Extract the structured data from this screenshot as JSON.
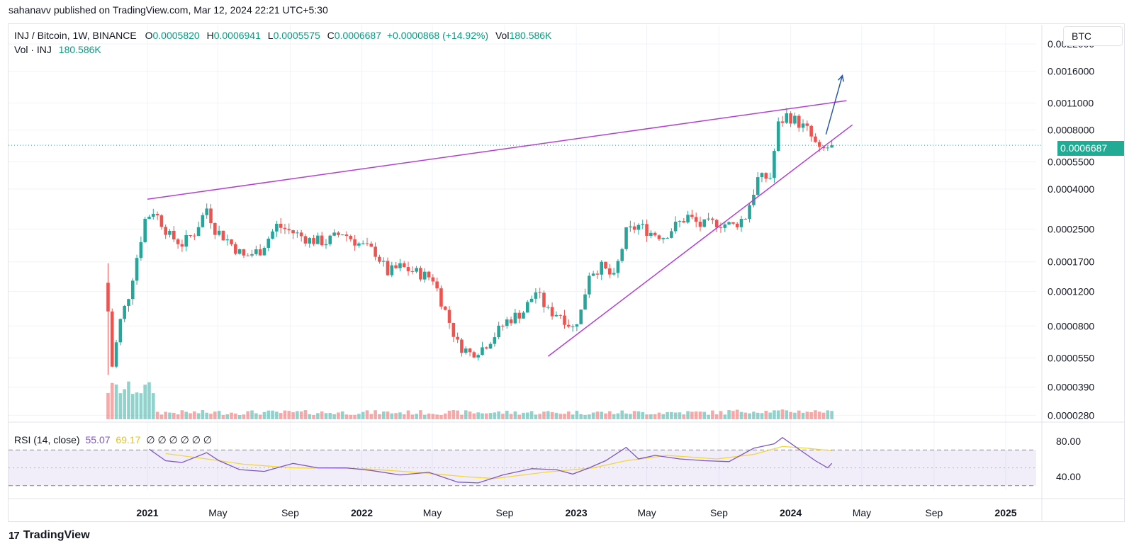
{
  "header": {
    "published": "sahanavv published on TradingView.com, Mar 12, 2024 22:21 UTC+5:30"
  },
  "legend": {
    "symbol": "INJ / Bitcoin, 1W, BINANCE",
    "o_label": "O",
    "o_value": "0.0005820",
    "h_label": "H",
    "h_value": "0.0006941",
    "l_label": "L",
    "l_value": "0.0005575",
    "c_label": "C",
    "c_value": "0.0006687",
    "change": "+0.0000868 (+14.92%)",
    "vol_label": "Vol",
    "vol_value": "180.586K",
    "vol_row_label": "Vol · INJ",
    "vol_row_value": "180.586K"
  },
  "rsi_legend": {
    "label": "RSI (14, close)",
    "rsi": "55.07",
    "ma": "69.17",
    "na": "∅ ∅ ∅ ∅ ∅ ∅"
  },
  "scale_button": "BTC",
  "last_price": "0.0006687",
  "footer": {
    "logo": "17",
    "brand": "TradingView"
  },
  "colors": {
    "up": "#26a69a",
    "down": "#ef5350",
    "trend": "#b53fd6",
    "arrow": "#2a5aa8",
    "rsi": "#7e57c2",
    "rsi_ma": "#f2d63c",
    "last": "#22ab94"
  },
  "chart_data": {
    "type": "candlestick",
    "title": "INJ / Bitcoin, 1W, BINANCE",
    "yscale": "log",
    "ylim": [
      2.5e-05,
      0.0026
    ],
    "y_ticks": [
      "0.0022000",
      "0.0016000",
      "0.0011000",
      "0.0008000",
      "0.0005500",
      "0.0004000",
      "0.0002500",
      "0.0001700",
      "0.0001200",
      "0.0000800",
      "0.0000550",
      "0.0000390",
      "0.0000280"
    ],
    "x_ticks": [
      "2021",
      "May",
      "Sep",
      "2022",
      "May",
      "Sep",
      "2023",
      "May",
      "Sep",
      "2024",
      "May",
      "Sep",
      "2025"
    ],
    "x_tick_dates": [
      "2021-01-01",
      "2021-05-01",
      "2021-09-01",
      "2022-01-01",
      "2022-05-01",
      "2022-09-01",
      "2023-01-01",
      "2023-05-01",
      "2023-09-01",
      "2024-01-01",
      "2024-05-01",
      "2024-09-01",
      "2025-01-01"
    ],
    "close_path": [
      [
        "2020-10-26",
        9.5e-05
      ],
      [
        "2020-11-02",
        5e-05
      ],
      [
        "2020-11-16",
        8.5e-05
      ],
      [
        "2020-11-30",
        0.000115
      ],
      [
        "2020-12-14",
        0.00018
      ],
      [
        "2020-12-28",
        0.00028
      ],
      [
        "2021-01-11",
        0.00031
      ],
      [
        "2021-01-25",
        0.00027
      ],
      [
        "2021-02-08",
        0.00023
      ],
      [
        "2021-03-01",
        0.00021
      ],
      [
        "2021-03-22",
        0.00024
      ],
      [
        "2021-04-12",
        0.00032
      ],
      [
        "2021-04-26",
        0.00025
      ],
      [
        "2021-05-17",
        0.00022
      ],
      [
        "2021-06-14",
        0.00018
      ],
      [
        "2021-07-12",
        0.000195
      ],
      [
        "2021-08-09",
        0.00026
      ],
      [
        "2021-09-06",
        0.00024
      ],
      [
        "2021-10-04",
        0.00022
      ],
      [
        "2021-11-01",
        0.000215
      ],
      [
        "2021-11-29",
        0.00024
      ],
      [
        "2021-12-27",
        0.00021
      ],
      [
        "2022-01-24",
        0.00019
      ],
      [
        "2022-02-14",
        0.00015
      ],
      [
        "2022-03-07",
        0.00016
      ],
      [
        "2022-04-04",
        0.00015
      ],
      [
        "2022-05-02",
        0.00014
      ],
      [
        "2022-05-23",
        9.5e-05
      ],
      [
        "2022-06-13",
        6.5e-05
      ],
      [
        "2022-07-04",
        5.8e-05
      ],
      [
        "2022-07-25",
        6.2e-05
      ],
      [
        "2022-08-15",
        7.2e-05
      ],
      [
        "2022-09-05",
        8.5e-05
      ],
      [
        "2022-10-03",
        9.5e-05
      ],
      [
        "2022-10-24",
        0.00012
      ],
      [
        "2022-11-14",
        9.5e-05
      ],
      [
        "2022-12-05",
        9.2e-05
      ],
      [
        "2022-12-26",
        7.8e-05
      ],
      [
        "2023-01-09",
        9.5e-05
      ],
      [
        "2023-01-23",
        0.00015
      ],
      [
        "2023-02-13",
        0.00016
      ],
      [
        "2023-03-06",
        0.00014
      ],
      [
        "2023-03-27",
        0.00024
      ],
      [
        "2023-04-17",
        0.00026
      ],
      [
        "2023-05-08",
        0.00024
      ],
      [
        "2023-05-29",
        0.00023
      ],
      [
        "2023-06-19",
        0.00026
      ],
      [
        "2023-07-10",
        0.00029
      ],
      [
        "2023-07-31",
        0.00026
      ],
      [
        "2023-08-28",
        0.00027
      ],
      [
        "2023-09-25",
        0.00026
      ],
      [
        "2023-10-16",
        0.00029
      ],
      [
        "2023-11-06",
        0.00045
      ],
      [
        "2023-11-27",
        0.00046
      ],
      [
        "2023-12-11",
        0.00085
      ],
      [
        "2023-12-25",
        0.00095
      ],
      [
        "2024-01-08",
        0.0009
      ],
      [
        "2024-01-29",
        0.0008
      ],
      [
        "2024-02-19",
        0.00062
      ],
      [
        "2024-03-11",
        0.0006687
      ]
    ],
    "trendlines": [
      {
        "name": "resistance",
        "points": [
          [
            "2021-01-01",
            0.000355
          ],
          [
            "2024-04-05",
            0.00113
          ]
        ]
      },
      {
        "name": "support",
        "points": [
          [
            "2022-11-14",
            5.6e-05
          ],
          [
            "2024-04-15",
            0.00085
          ]
        ]
      }
    ],
    "projection_arrow": {
      "points": [
        [
          "2024-03-01",
          0.00076
        ],
        [
          "2024-03-29",
          0.00152
        ]
      ]
    },
    "last_price": 0.0006687,
    "volume": {
      "last": "180.586K"
    },
    "rsi": {
      "ylim": [
        25,
        95
      ],
      "y_ticks": [
        "80.00",
        "40.00"
      ],
      "bands": [
        70,
        50,
        30
      ],
      "last_rsi": 55.07,
      "last_ma": 69.17,
      "rsi_series": [
        [
          "2021-01-04",
          71
        ],
        [
          "2021-02-01",
          58
        ],
        [
          "2021-03-01",
          56
        ],
        [
          "2021-04-12",
          67
        ],
        [
          "2021-05-03",
          58
        ],
        [
          "2021-06-07",
          48
        ],
        [
          "2021-07-19",
          46
        ],
        [
          "2021-09-06",
          55
        ],
        [
          "2021-10-18",
          50
        ],
        [
          "2021-12-06",
          50
        ],
        [
          "2022-01-17",
          47
        ],
        [
          "2022-03-07",
          42
        ],
        [
          "2022-04-25",
          45
        ],
        [
          "2022-06-13",
          34
        ],
        [
          "2022-07-18",
          33
        ],
        [
          "2022-08-29",
          42
        ],
        [
          "2022-10-17",
          49
        ],
        [
          "2022-11-28",
          48
        ],
        [
          "2022-12-26",
          43
        ],
        [
          "2023-01-23",
          50
        ],
        [
          "2023-02-20",
          58
        ],
        [
          "2023-03-27",
          73
        ],
        [
          "2023-04-17",
          60
        ],
        [
          "2023-05-15",
          64
        ],
        [
          "2023-06-26",
          60
        ],
        [
          "2023-08-07",
          58
        ],
        [
          "2023-09-18",
          57
        ],
        [
          "2023-10-30",
          72
        ],
        [
          "2023-12-04",
          77
        ],
        [
          "2023-12-18",
          84
        ],
        [
          "2024-01-15",
          71
        ],
        [
          "2024-02-12",
          58
        ],
        [
          "2024-03-04",
          50
        ],
        [
          "2024-03-11",
          55.07
        ]
      ],
      "ma_series": [
        [
          "2021-02-01",
          66
        ],
        [
          "2021-04-12",
          60
        ],
        [
          "2021-06-14",
          54
        ],
        [
          "2021-09-06",
          50
        ],
        [
          "2022-01-03",
          49
        ],
        [
          "2022-04-04",
          45
        ],
        [
          "2022-06-27",
          40
        ],
        [
          "2022-08-15",
          38
        ],
        [
          "2022-11-07",
          45
        ],
        [
          "2023-01-30",
          50
        ],
        [
          "2023-03-27",
          58
        ],
        [
          "2023-06-05",
          64
        ],
        [
          "2023-08-28",
          60
        ],
        [
          "2023-10-30",
          65
        ],
        [
          "2023-12-18",
          74
        ],
        [
          "2024-01-29",
          72
        ],
        [
          "2024-03-11",
          69.17
        ]
      ]
    }
  }
}
